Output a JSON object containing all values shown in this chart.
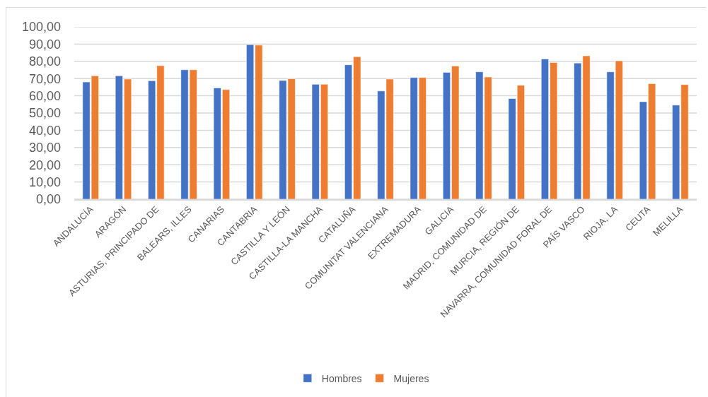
{
  "chart_data": {
    "type": "bar",
    "categories": [
      "ANDALUCÍA",
      "ARAGÓN",
      "ASTURIAS, PRINCIPADO DE",
      "BALEARS, ILLES",
      "CANARIAS",
      "CANTABRIA",
      "CASTILLA Y LEÓN",
      "CASTILLA-LA MANCHA",
      "CATALUÑA",
      "COMUNITAT VALENCIANA",
      "EXTREMADURA",
      "GALICIA",
      "MADRID, COMUNIDAD DE",
      "MURCIA, REGIÓN DE",
      "NAVARRA, COMUNIDAD FORAL DE",
      "PAÍS VASCO",
      "RIOJA, LA",
      "CEUTA",
      "MELILLA"
    ],
    "series": [
      {
        "name": "Hombres",
        "color": "#4472c4",
        "values": [
          68.0,
          71.6,
          68.7,
          75.1,
          64.6,
          89.7,
          68.9,
          66.7,
          78.0,
          62.8,
          70.6,
          73.6,
          73.9,
          58.4,
          81.4,
          79.0,
          73.9,
          56.6,
          54.6
        ]
      },
      {
        "name": "Mujeres",
        "color": "#ed7d31",
        "values": [
          71.6,
          69.7,
          77.5,
          75.1,
          63.6,
          89.4,
          69.9,
          66.7,
          82.7,
          69.7,
          70.6,
          77.3,
          70.9,
          66.1,
          79.3,
          83.2,
          80.3,
          67.0,
          66.5
        ]
      }
    ],
    "ylim": [
      0,
      100
    ],
    "yticks": [
      {
        "value": 0,
        "label": "0,00"
      },
      {
        "value": 10,
        "label": "10,00"
      },
      {
        "value": 20,
        "label": "20,00"
      },
      {
        "value": 30,
        "label": "30,00"
      },
      {
        "value": 40,
        "label": "40,00"
      },
      {
        "value": 50,
        "label": "50,00"
      },
      {
        "value": 60,
        "label": "60,00"
      },
      {
        "value": 70,
        "label": "70,00"
      },
      {
        "value": 80,
        "label": "80,00"
      },
      {
        "value": 90,
        "label": "90,00"
      },
      {
        "value": 100,
        "label": "100,00"
      }
    ],
    "grid": "y",
    "legend": "bottom"
  }
}
